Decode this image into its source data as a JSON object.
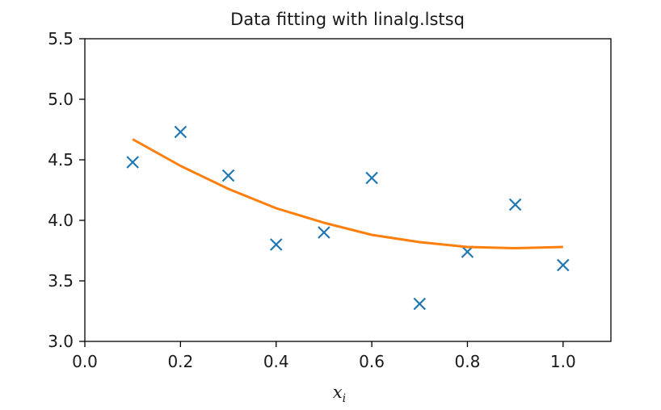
{
  "chart_data": {
    "type": "scatter",
    "title": "Data fitting with linalg.lstsq",
    "xlabel": {
      "base": "x",
      "subscript": "i"
    },
    "ylabel": "",
    "xlim": [
      0.0,
      1.1
    ],
    "ylim": [
      3.0,
      5.5
    ],
    "xticks": [
      0.0,
      0.2,
      0.4,
      0.6,
      0.8,
      1.0
    ],
    "xtick_labels": [
      "0.0",
      "0.2",
      "0.4",
      "0.6",
      "0.8",
      "1.0"
    ],
    "yticks": [
      3.0,
      3.5,
      4.0,
      4.5,
      5.0,
      5.5
    ],
    "ytick_labels": [
      "3.0",
      "3.5",
      "4.0",
      "4.5",
      "5.0",
      "5.5"
    ],
    "grid": false,
    "series": [
      {
        "kind": "scatter",
        "marker": "x",
        "color": "#1f77b4",
        "x": [
          0.1,
          0.2,
          0.3,
          0.4,
          0.5,
          0.6,
          0.7,
          0.8,
          0.9,
          1.0
        ],
        "y": [
          4.48,
          4.73,
          4.37,
          3.8,
          3.9,
          4.35,
          3.31,
          3.74,
          4.13,
          3.63
        ]
      },
      {
        "kind": "line",
        "color": "#ff7f0e",
        "x": [
          0.1,
          0.2,
          0.3,
          0.4,
          0.5,
          0.6,
          0.7,
          0.8,
          0.9,
          1.0
        ],
        "y": [
          4.67,
          4.45,
          4.26,
          4.1,
          3.98,
          3.88,
          3.82,
          3.78,
          3.77,
          3.78
        ]
      }
    ]
  }
}
